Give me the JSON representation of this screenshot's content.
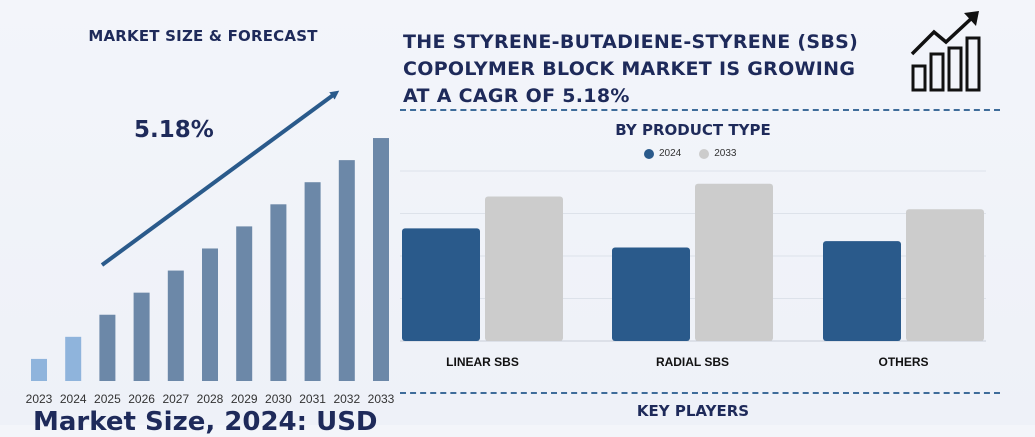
{
  "left_panel": {
    "title": "MARKET SIZE & FORECAST",
    "cagr_label": "5.18%",
    "bottom_text": "Market Size, 2024: USD"
  },
  "headline": {
    "line1": "THE STYRENE-BUTADIENE-STYRENE (SBS)",
    "line2": "COPOLYMER BLOCK MARKET IS GROWING",
    "line3": "AT A CAGR OF 5.18%"
  },
  "icons": {
    "growth": "growth-chart-icon",
    "trend_arrow": "trend-arrow-icon"
  },
  "product_section": {
    "title": "BY PRODUCT TYPE"
  },
  "players_section": {
    "title": "KEY PLAYERS"
  },
  "colors": {
    "navy": "#1e2a5a",
    "bar_light": "#8fb4dc",
    "bar_dark": "#6c88a8",
    "series_2024": "#2a5a8b",
    "series_2033": "#cccccc",
    "divider": "#3e6c9a"
  },
  "chart_data": [
    {
      "type": "bar",
      "title": "",
      "categories": [
        "2023",
        "2024",
        "2025",
        "2026",
        "2027",
        "2028",
        "2029",
        "2030",
        "2031",
        "2032",
        "2033"
      ],
      "values": [
        1.0,
        2.0,
        3.0,
        4.0,
        5.0,
        6.0,
        7.0,
        8.0,
        9.0,
        10.0,
        11.0
      ],
      "highlight_first": 2,
      "ylim": [
        0,
        11.5
      ],
      "grid": false,
      "annotation": "5.18%"
    },
    {
      "type": "bar",
      "title": "BY PRODUCT TYPE",
      "categories": [
        "LINEAR SBS",
        "RADIAL SBS",
        "OTHERS"
      ],
      "series": [
        {
          "name": "2024",
          "values": [
            5.3,
            4.4,
            4.7
          ]
        },
        {
          "name": "2033",
          "values": [
            6.8,
            7.4,
            6.2
          ]
        }
      ],
      "ylim": [
        0,
        8
      ],
      "grid": true,
      "legend": "top-center"
    }
  ]
}
